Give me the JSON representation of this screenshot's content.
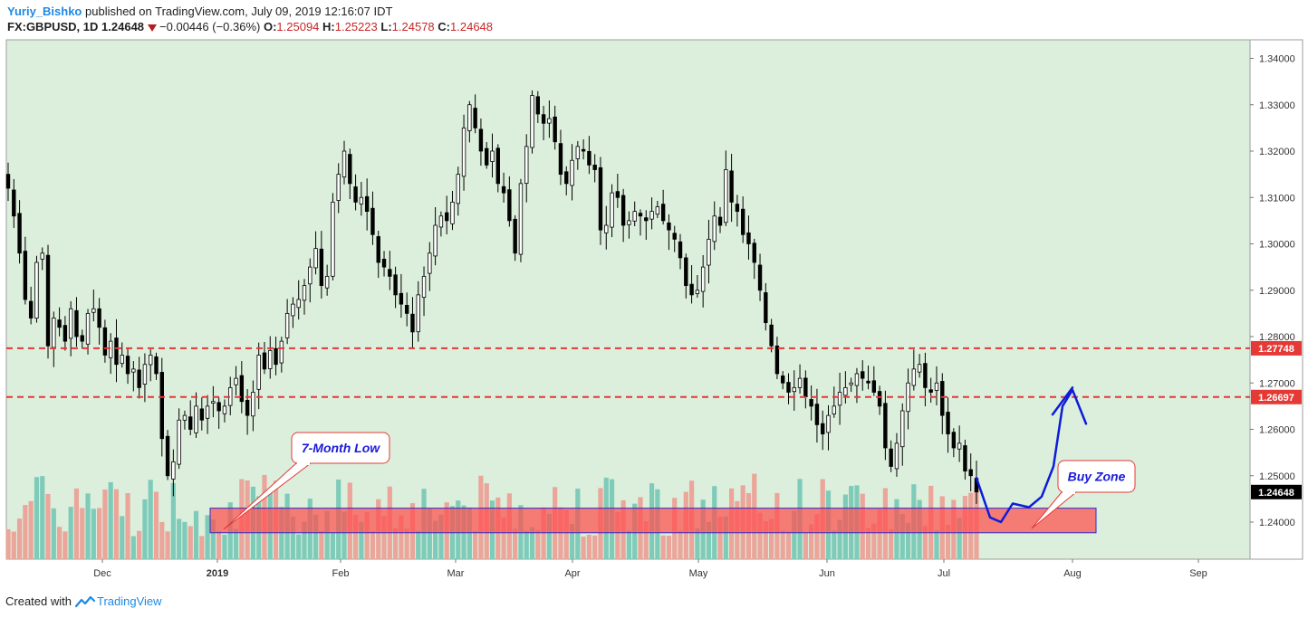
{
  "header": {
    "author": "Yuriy_Bishko",
    "published": "published on TradingView.com, July 09, 2019 12:16:07 IDT",
    "symbol": "FX:GBPUSD, 1D",
    "last": "1.24648",
    "change": "−0.00446 (−0.36%)",
    "o_label": "O:",
    "o": "1.25094",
    "h_label": "H:",
    "h": "1.25223",
    "l_label": "L:",
    "l": "1.24578",
    "c_label": "C:",
    "c": "1.24648"
  },
  "footer": {
    "created": "Created with",
    "brand": "TradingView"
  },
  "colors": {
    "background": "#dcefdc",
    "candle_up": "#ffffff",
    "candle_down": "#000000",
    "volume_up": "#7fcbb9",
    "volume_down": "#eba59a",
    "resistance_line": "#e53935",
    "buy_zone": "#ff4d4d",
    "projection": "#0d1bdc",
    "callout_text": "#1a1adb"
  },
  "annotations": {
    "low_callout": "7-Month Low",
    "buy_zone_callout": "Buy Zone"
  },
  "chart_data": {
    "type": "candlestick",
    "ylim": [
      1.232,
      1.344
    ],
    "y_ticks": [
      "1.34000",
      "1.33000",
      "1.32000",
      "1.31000",
      "1.30000",
      "1.29000",
      "1.28000",
      "1.27000",
      "1.26000",
      "1.25000",
      "1.24000"
    ],
    "x_ticks": [
      "Dec",
      "2019",
      "Feb",
      "Mar",
      "Apr",
      "May",
      "Jun",
      "Jul",
      "Aug",
      "Sep"
    ],
    "levels": [
      {
        "value": 1.27748,
        "label": "1.27748"
      },
      {
        "value": 1.26697,
        "label": "1.26697"
      }
    ],
    "last_price": {
      "value": 1.24648,
      "label": "1.24648"
    },
    "buy_zone": {
      "from": 1.2377,
      "to": 1.243
    },
    "projection_path": [
      1.2495,
      1.241,
      1.24,
      1.244,
      1.2432,
      1.2455,
      1.252,
      1.265,
      1.2685,
      1.2612
    ],
    "projection_arrow": [
      1.2632,
      1.269
    ],
    "closes": [
      1.312,
      1.306,
      1.298,
      1.288,
      1.284,
      1.296,
      1.298,
      1.278,
      1.284,
      1.282,
      1.279,
      1.286,
      1.28,
      1.279,
      1.285,
      1.286,
      1.282,
      1.276,
      1.279,
      1.274,
      1.276,
      1.272,
      1.273,
      1.269,
      1.274,
      1.276,
      1.272,
      1.258,
      1.25,
      1.253,
      1.262,
      1.263,
      1.26,
      1.265,
      1.262,
      1.265,
      1.266,
      1.264,
      1.265,
      1.269,
      1.271,
      1.266,
      1.263,
      1.268,
      1.276,
      1.273,
      1.277,
      1.274,
      1.279,
      1.285,
      1.287,
      1.288,
      1.291,
      1.295,
      1.299,
      1.291,
      1.293,
      1.309,
      1.315,
      1.32,
      1.313,
      1.309,
      1.31,
      1.307,
      1.302,
      1.296,
      1.295,
      1.293,
      1.289,
      1.287,
      1.285,
      1.281,
      1.289,
      1.293,
      1.298,
      1.304,
      1.306,
      1.305,
      1.309,
      1.315,
      1.325,
      1.33,
      1.325,
      1.32,
      1.317,
      1.32,
      1.313,
      1.311,
      1.305,
      1.298,
      1.313,
      1.321,
      1.332,
      1.328,
      1.326,
      1.327,
      1.322,
      1.315,
      1.313,
      1.318,
      1.321,
      1.32,
      1.317,
      1.316,
      1.303,
      1.304,
      1.311,
      1.31,
      1.304,
      1.305,
      1.307,
      1.306,
      1.305,
      1.307,
      1.308,
      1.305,
      1.303,
      1.301,
      1.297,
      1.291,
      1.289,
      1.29,
      1.295,
      1.301,
      1.306,
      1.304,
      1.316,
      1.309,
      1.307,
      1.302,
      1.3,
      1.296,
      1.29,
      1.283,
      1.278,
      1.272,
      1.27,
      1.268,
      1.269,
      1.271,
      1.267,
      1.265,
      1.261,
      1.259,
      1.263,
      1.265,
      1.268,
      1.269,
      1.27,
      1.272,
      1.271,
      1.27,
      1.268,
      1.265,
      1.256,
      1.252,
      1.257,
      1.264,
      1.27,
      1.273,
      1.274,
      1.269,
      1.268,
      1.27,
      1.263,
      1.259,
      1.256,
      1.257,
      1.251,
      1.25,
      1.2465
    ]
  }
}
